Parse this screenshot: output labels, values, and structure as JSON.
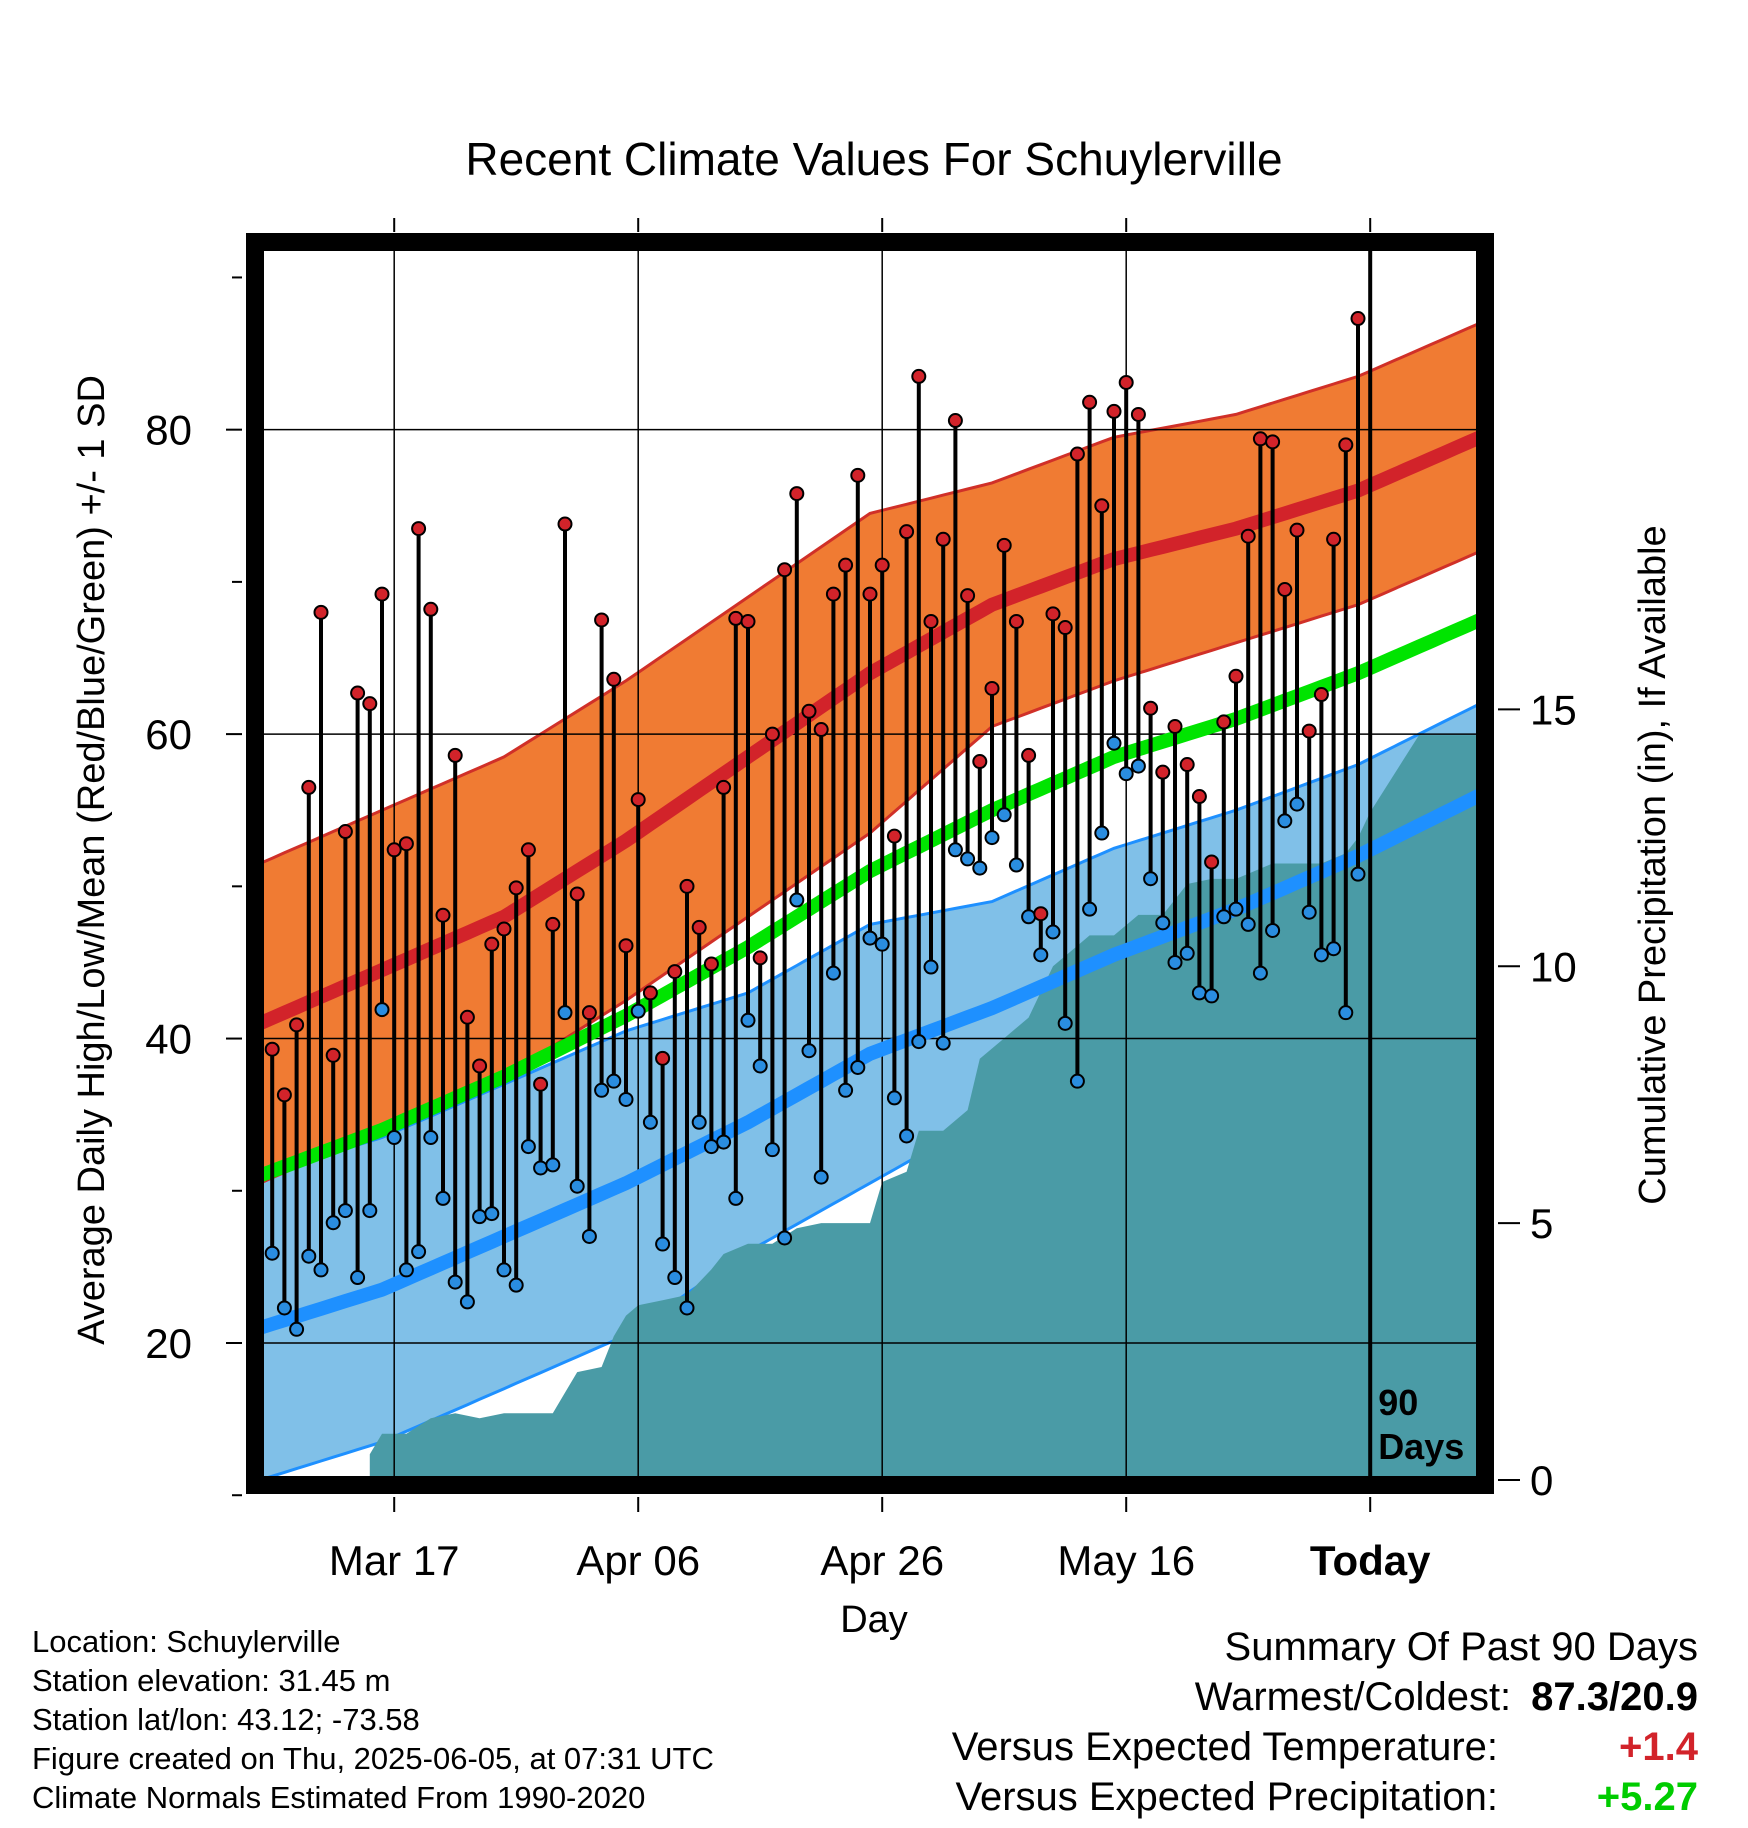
{
  "chart_data": {
    "type": "line",
    "title": "Recent Climate Values For Schuylerville",
    "xlabel": "Day",
    "ylabel_left": "Average Daily High/Low/Mean (Red/Blue/Green) +/- 1 SD",
    "ylabel_right": "Cumulative Precipitation (in), If Available",
    "x_tick_labels": [
      "Mar 17",
      "Apr 06",
      "Apr 26",
      "May 16",
      "Today"
    ],
    "x_tick_days": [
      11,
      31,
      51,
      71,
      91
    ],
    "x_range_days": [
      0,
      100
    ],
    "y_left_ticks": [
      "20",
      "40",
      "60",
      "80"
    ],
    "y_left_tick_values": [
      20,
      40,
      60,
      80
    ],
    "y_left_range": [
      11,
      92
    ],
    "y_right_ticks": [
      "0",
      "5",
      "10",
      "15"
    ],
    "y_right_tick_values": [
      0,
      5,
      10,
      15
    ],
    "y_right_range": [
      0,
      24
    ],
    "today_marker_label": "90 Days",
    "grid": true,
    "colors": {
      "high_band": "#f07b33",
      "high_band_edge": "#d03028",
      "high_mean": "#d2232a",
      "low_band": "#80c0e8",
      "low_band_edge": "#1e90ff",
      "low_mean": "#1e90ff",
      "mean_line": "#00e400",
      "precip": "#4a9ba6",
      "high_dot": "#d2232a",
      "low_dot": "#2a8de0"
    },
    "normals": {
      "days": [
        0,
        10,
        20,
        30,
        40,
        50,
        60,
        70,
        80,
        90,
        100
      ],
      "high_mean": [
        41,
        44.5,
        48,
        53,
        58.5,
        64,
        68.5,
        71.5,
        73.5,
        76,
        79.5
      ],
      "high_sd": [
        10.5,
        10.5,
        10.5,
        10.5,
        10.5,
        10.5,
        8,
        8,
        7.5,
        7.5,
        7.5
      ],
      "low_mean": [
        21,
        23.5,
        27,
        30.5,
        34.5,
        39,
        42,
        45.5,
        48.5,
        52,
        56
      ],
      "low_sd": [
        10,
        10,
        10,
        10,
        8.5,
        8.5,
        7,
        7,
        6.5,
        6,
        6
      ],
      "mean": [
        31,
        34,
        37.5,
        41.5,
        46,
        51,
        55,
        58.5,
        61,
        64,
        67.5
      ]
    },
    "daily": {
      "highs": [
        39.3,
        36.3,
        40.9,
        56.5,
        68.0,
        38.9,
        53.6,
        62.7,
        62.0,
        69.2,
        52.4,
        52.8,
        73.5,
        68.2,
        48.1,
        58.6,
        41.4,
        38.2,
        46.2,
        47.2,
        49.9,
        52.4,
        37.0,
        47.5,
        73.8,
        49.5,
        41.7,
        67.5,
        63.6,
        46.1,
        55.7,
        43.0,
        38.7,
        44.4,
        50.0,
        47.3,
        44.9,
        56.5,
        67.6,
        67.4,
        45.3,
        60.0,
        70.8,
        75.8,
        61.5,
        60.3,
        69.2,
        71.1,
        77.0,
        69.2,
        71.1,
        53.3,
        73.3,
        83.5,
        67.4,
        72.8,
        80.6,
        69.1,
        58.2,
        63.0,
        72.4,
        67.4,
        58.6,
        48.2,
        67.9,
        67.0,
        78.4,
        81.8,
        75.0,
        81.2,
        83.1,
        81.0,
        61.7,
        57.5,
        60.5,
        58.0,
        55.9,
        51.6,
        60.8,
        63.8,
        73.0,
        79.4,
        79.2,
        69.5,
        73.4,
        60.2,
        62.6,
        72.8,
        79.0,
        87.3
      ],
      "lows": [
        25.9,
        22.3,
        20.9,
        25.7,
        24.8,
        27.9,
        28.7,
        24.3,
        28.7,
        41.9,
        33.5,
        24.8,
        26.0,
        33.5,
        29.5,
        24.0,
        22.7,
        28.3,
        28.5,
        24.8,
        23.8,
        32.9,
        31.5,
        31.7,
        41.7,
        30.3,
        27.0,
        36.6,
        37.2,
        36.0,
        41.8,
        34.5,
        26.5,
        24.3,
        22.3,
        34.5,
        32.9,
        33.2,
        29.5,
        41.2,
        38.2,
        32.7,
        26.9,
        49.1,
        39.2,
        30.9,
        44.3,
        36.6,
        38.1,
        46.6,
        46.2,
        36.1,
        33.6,
        39.8,
        44.7,
        39.7,
        52.4,
        51.8,
        51.2,
        53.2,
        54.7,
        51.4,
        48.0,
        45.5,
        47.0,
        41.0,
        37.2,
        48.5,
        53.5,
        59.4,
        57.4,
        57.9,
        50.5,
        47.6,
        45.0,
        45.6,
        43.0,
        42.8,
        48.0,
        48.5,
        47.5,
        44.3,
        47.1,
        54.3,
        55.4,
        48.3,
        45.5,
        45.9,
        41.7,
        50.8
      ]
    },
    "precip_cumulative": {
      "days": [
        9,
        10,
        12,
        14,
        16,
        18,
        20,
        22,
        24,
        26,
        28,
        29,
        30,
        31,
        33,
        35,
        37,
        38,
        40,
        42,
        44,
        46,
        48,
        50,
        51,
        53,
        54,
        56,
        58,
        59,
        61,
        63,
        65,
        67,
        68,
        70,
        72,
        74,
        76,
        78,
        80,
        83,
        85,
        87,
        89,
        90,
        91,
        95,
        100
      ],
      "values": [
        0.5,
        0.9,
        0.9,
        1.2,
        1.3,
        1.2,
        1.3,
        1.3,
        1.3,
        2.1,
        2.2,
        2.8,
        3.2,
        3.4,
        3.5,
        3.6,
        4.1,
        4.4,
        4.6,
        4.6,
        4.9,
        5.0,
        5.0,
        5.0,
        5.8,
        6.0,
        6.8,
        6.8,
        7.2,
        8.2,
        8.6,
        9.0,
        10.0,
        10.4,
        10.6,
        10.6,
        11.0,
        11.0,
        11.6,
        11.7,
        11.7,
        12.0,
        12.0,
        12.0,
        12.2,
        12.5,
        13.0,
        14.5,
        14.5
      ]
    }
  },
  "footer": {
    "location": "Location: Schuylerville",
    "elevation": "Station elevation: 31.45 m",
    "latlon": "Station lat/lon: 43.12; -73.58",
    "created": "Figure created on Thu, 2025-06-05, at 07:31 UTC",
    "normals": "Climate Normals Estimated From 1990-2020"
  },
  "summary": {
    "heading": "Summary Of Past 90 Days",
    "warm_cold_label": "Warmest/Coldest:",
    "warm_cold_value": "87.3/20.9",
    "temp_label": "Versus Expected Temperature:",
    "temp_value": "+1.4",
    "precip_label": "Versus Expected Precipitation:",
    "precip_value": "+5.27",
    "temp_color": "#d2232a",
    "precip_color": "#00cc00"
  }
}
